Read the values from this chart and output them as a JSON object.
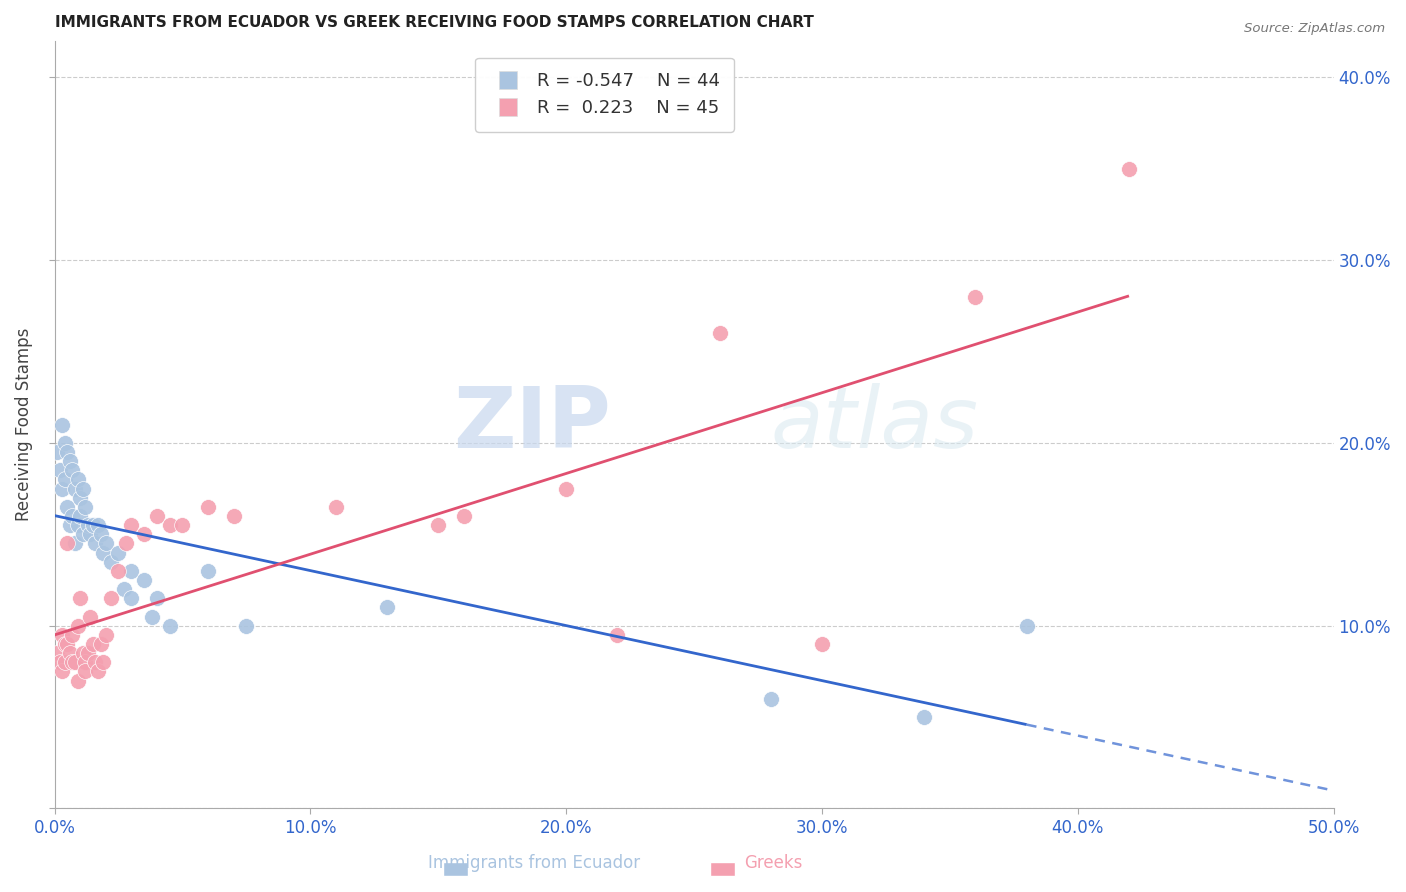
{
  "title": "IMMIGRANTS FROM ECUADOR VS GREEK RECEIVING FOOD STAMPS CORRELATION CHART",
  "source": "Source: ZipAtlas.com",
  "ylabel_label": "Receiving Food Stamps",
  "xlim": [
    0.0,
    0.5
  ],
  "ylim": [
    0.0,
    0.42
  ],
  "xtick_vals": [
    0.0,
    0.1,
    0.2,
    0.3,
    0.4,
    0.5
  ],
  "ytick_right_vals": [
    0.1,
    0.2,
    0.3,
    0.4
  ],
  "grid_color": "#cccccc",
  "background_color": "#ffffff",
  "ecuador_color": "#aac4e0",
  "greek_color": "#f4a0b0",
  "ecuador_line_color": "#3366cc",
  "greek_line_color": "#e05070",
  "ecuador_R": -0.547,
  "ecuador_N": 44,
  "greek_R": 0.223,
  "greek_N": 45,
  "legend_label_ecuador": "Immigrants from Ecuador",
  "legend_label_greek": "Greeks",
  "watermark_zip": "ZIP",
  "watermark_atlas": "atlas",
  "title_fontsize": 11,
  "axis_label_color": "#3366cc",
  "ecuador_scatter_x": [
    0.001,
    0.002,
    0.003,
    0.003,
    0.004,
    0.004,
    0.005,
    0.005,
    0.006,
    0.006,
    0.007,
    0.007,
    0.008,
    0.008,
    0.009,
    0.009,
    0.01,
    0.01,
    0.011,
    0.011,
    0.012,
    0.013,
    0.014,
    0.015,
    0.016,
    0.017,
    0.018,
    0.019,
    0.02,
    0.022,
    0.025,
    0.027,
    0.03,
    0.03,
    0.035,
    0.038,
    0.04,
    0.045,
    0.06,
    0.075,
    0.13,
    0.28,
    0.34,
    0.38
  ],
  "ecuador_scatter_y": [
    0.195,
    0.185,
    0.21,
    0.175,
    0.2,
    0.18,
    0.195,
    0.165,
    0.19,
    0.155,
    0.185,
    0.16,
    0.175,
    0.145,
    0.18,
    0.155,
    0.17,
    0.16,
    0.175,
    0.15,
    0.165,
    0.155,
    0.15,
    0.155,
    0.145,
    0.155,
    0.15,
    0.14,
    0.145,
    0.135,
    0.14,
    0.12,
    0.13,
    0.115,
    0.125,
    0.105,
    0.115,
    0.1,
    0.13,
    0.1,
    0.11,
    0.06,
    0.05,
    0.1
  ],
  "greek_scatter_x": [
    0.001,
    0.002,
    0.003,
    0.003,
    0.004,
    0.004,
    0.005,
    0.005,
    0.006,
    0.007,
    0.007,
    0.008,
    0.009,
    0.009,
    0.01,
    0.011,
    0.012,
    0.012,
    0.013,
    0.014,
    0.015,
    0.016,
    0.017,
    0.018,
    0.019,
    0.02,
    0.022,
    0.025,
    0.028,
    0.03,
    0.035,
    0.04,
    0.045,
    0.05,
    0.06,
    0.07,
    0.11,
    0.15,
    0.16,
    0.2,
    0.22,
    0.26,
    0.3,
    0.36,
    0.42
  ],
  "greek_scatter_y": [
    0.085,
    0.08,
    0.095,
    0.075,
    0.09,
    0.08,
    0.145,
    0.09,
    0.085,
    0.08,
    0.095,
    0.08,
    0.1,
    0.07,
    0.115,
    0.085,
    0.08,
    0.075,
    0.085,
    0.105,
    0.09,
    0.08,
    0.075,
    0.09,
    0.08,
    0.095,
    0.115,
    0.13,
    0.145,
    0.155,
    0.15,
    0.16,
    0.155,
    0.155,
    0.165,
    0.16,
    0.165,
    0.155,
    0.16,
    0.175,
    0.095,
    0.26,
    0.09,
    0.28,
    0.35
  ]
}
